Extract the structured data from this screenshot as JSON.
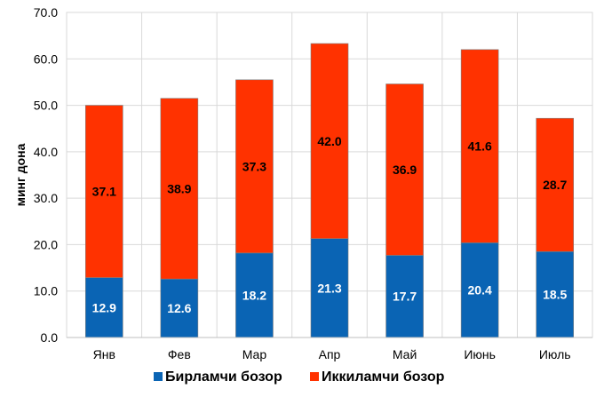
{
  "chart_data": {
    "type": "bar",
    "stacked": true,
    "categories": [
      "Янв",
      "Фев",
      "Мар",
      "Апр",
      "Май",
      "Июнь",
      "Июль"
    ],
    "series": [
      {
        "name": "Бирламчи бозор",
        "color": "#0A64B4",
        "label_color": "#ffffff",
        "values": [
          12.9,
          12.6,
          18.2,
          21.3,
          17.7,
          20.4,
          18.5
        ]
      },
      {
        "name": "Иккиламчи бозор",
        "color": "#FF3200",
        "label_color": "#000000",
        "values": [
          37.1,
          38.9,
          37.3,
          42.0,
          36.9,
          41.6,
          28.7
        ]
      }
    ],
    "title": "",
    "xlabel": "",
    "ylabel": "минг дона",
    "ylim": [
      0,
      70
    ],
    "yticks": [
      "0.0",
      "10.0",
      "20.0",
      "30.0",
      "40.0",
      "50.0",
      "60.0",
      "70.0"
    ],
    "grid": true,
    "legend_position": "bottom"
  }
}
